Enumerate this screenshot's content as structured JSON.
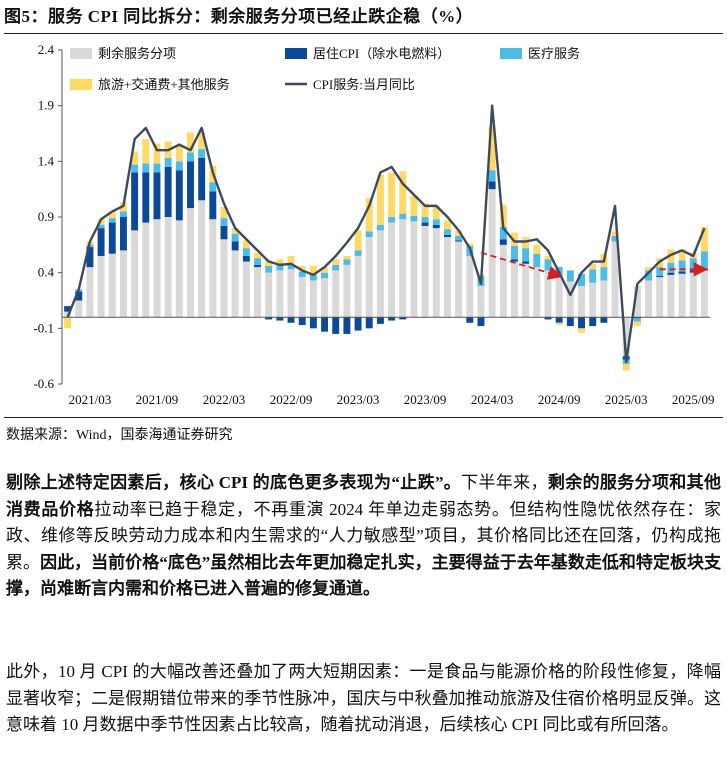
{
  "figure_title": "图5：服务 CPI 同比拆分：剩余服务分项已经止跌企稳（%）",
  "source": "数据来源：Wind，国泰海通证券研究",
  "colors": {
    "rest": "#d9d9d9",
    "housing": "#0b4a97",
    "medical": "#4dbbe6",
    "travel": "#ffd966",
    "line": "#3d4a5c",
    "arrow": "#d62020"
  },
  "chart_data": {
    "type": "bar",
    "stacked": true,
    "ylim": [
      -0.6,
      2.4
    ],
    "yticks": [
      "2.4",
      "1.9",
      "1.4",
      "0.9",
      "0.4",
      "-0.1",
      "-0.6"
    ],
    "xtick_labels": [
      "2021/03",
      "2021/09",
      "2022/03",
      "2022/09",
      "2023/03",
      "2023/09",
      "2024/03",
      "2024/09",
      "2025/03",
      "2025/09"
    ],
    "xtick_index": [
      2,
      8,
      14,
      20,
      26,
      32,
      38,
      44,
      50,
      56
    ],
    "grid": false,
    "legend": "top",
    "series": [
      {
        "name": "剩余服务分项",
        "key": "rest",
        "values": [
          0.05,
          0.15,
          0.45,
          0.55,
          0.57,
          0.6,
          0.78,
          0.85,
          0.88,
          0.9,
          0.87,
          0.98,
          1.05,
          0.88,
          0.7,
          0.6,
          0.5,
          0.45,
          0.4,
          0.42,
          0.43,
          0.36,
          0.33,
          0.35,
          0.42,
          0.47,
          0.55,
          0.72,
          0.78,
          0.85,
          0.88,
          0.86,
          0.82,
          0.8,
          0.72,
          0.68,
          0.55,
          0.28,
          1.15,
          0.65,
          0.5,
          0.48,
          0.45,
          0.42,
          0.36,
          0.32,
          0.28,
          0.31,
          0.33,
          0.68,
          -0.35,
          0.28,
          0.33,
          0.36,
          0.38,
          0.39,
          0.4,
          0.42
        ]
      },
      {
        "name": "居住CPI（除水电燃料）",
        "key": "housing",
        "values": [
          0.05,
          0.08,
          0.18,
          0.25,
          0.28,
          0.3,
          0.52,
          0.45,
          0.42,
          0.45,
          0.45,
          0.42,
          0.38,
          0.25,
          0.12,
          0.08,
          0.05,
          0.02,
          -0.02,
          -0.03,
          -0.05,
          -0.07,
          -0.1,
          -0.13,
          -0.15,
          -0.15,
          -0.12,
          -0.1,
          -0.06,
          -0.03,
          -0.02,
          0.0,
          0.03,
          0.03,
          0.02,
          0.01,
          -0.05,
          -0.08,
          0.07,
          0.05,
          0.02,
          0.02,
          0.0,
          -0.02,
          -0.05,
          -0.08,
          -0.1,
          -0.08,
          -0.05,
          0.0,
          -0.03,
          -0.01,
          0.0,
          0.01,
          0.02,
          0.02,
          0.02,
          0.02
        ]
      },
      {
        "name": "医疗服务",
        "key": "medical",
        "values": [
          0.0,
          0.02,
          0.02,
          0.03,
          0.04,
          0.05,
          0.07,
          0.08,
          0.08,
          0.08,
          0.08,
          0.08,
          0.08,
          0.08,
          0.07,
          0.07,
          0.07,
          0.06,
          0.06,
          0.05,
          0.05,
          0.05,
          0.05,
          0.05,
          0.05,
          0.05,
          0.05,
          0.05,
          0.05,
          0.05,
          0.05,
          0.05,
          0.05,
          0.05,
          0.05,
          0.04,
          0.09,
          0.09,
          0.1,
          0.11,
          0.12,
          0.12,
          0.12,
          0.1,
          0.09,
          0.1,
          0.11,
          0.12,
          0.12,
          0.05,
          -0.04,
          -0.03,
          0.09,
          0.08,
          0.09,
          0.1,
          0.11,
          0.15
        ]
      },
      {
        "name": "旅游+交通费+其他服务",
        "key": "travel",
        "values": [
          -0.1,
          0.0,
          0.03,
          0.05,
          0.06,
          0.08,
          0.12,
          0.22,
          0.18,
          0.15,
          0.15,
          0.18,
          0.15,
          0.15,
          0.1,
          0.05,
          0.07,
          0.05,
          0.05,
          0.05,
          0.07,
          0.05,
          0.08,
          0.05,
          0.05,
          0.03,
          0.18,
          0.3,
          0.45,
          0.4,
          0.38,
          0.18,
          0.12,
          0.12,
          0.08,
          0.05,
          0.02,
          0.02,
          0.4,
          0.2,
          0.12,
          0.1,
          0.08,
          0.03,
          -0.02,
          0.0,
          -0.04,
          0.05,
          0.12,
          0.04,
          -0.06,
          -0.04,
          0.03,
          0.08,
          0.12,
          0.1,
          0.05,
          0.22
        ]
      }
    ],
    "line": {
      "name": "CPI服务:当月同比",
      "key": "line",
      "values": [
        0.0,
        0.25,
        0.68,
        0.88,
        0.95,
        1.0,
        1.6,
        1.7,
        1.5,
        1.5,
        1.55,
        1.5,
        1.7,
        1.3,
        1.02,
        0.8,
        0.7,
        0.6,
        0.5,
        0.47,
        0.48,
        0.42,
        0.38,
        0.45,
        0.55,
        0.67,
        0.8,
        1.0,
        1.3,
        1.35,
        1.2,
        1.1,
        1.0,
        1.0,
        0.9,
        0.78,
        0.62,
        0.3,
        1.9,
        0.8,
        0.68,
        0.68,
        0.7,
        0.6,
        0.4,
        0.2,
        0.4,
        0.5,
        0.5,
        1.0,
        -0.4,
        0.3,
        0.4,
        0.5,
        0.56,
        0.6,
        0.55,
        0.8
      ]
    },
    "annotations": [
      {
        "type": "arrow",
        "from": [
          37,
          0.58
        ],
        "to": [
          44,
          0.37
        ]
      },
      {
        "type": "arrow",
        "from": [
          53,
          0.43
        ],
        "to": [
          57,
          0.43
        ]
      }
    ]
  },
  "paragraphs": [
    [
      {
        "text": "剔除上述特定因素后，核心 CPI 的底色更多表现为“止跌”。",
        "bold": true
      },
      {
        "text": "下半年来，",
        "bold": false
      },
      {
        "text": "剩余的服务分项和其他消费品价格",
        "bold": true
      },
      {
        "text": "拉动率已趋于稳定，不再重演 2024 年单边走弱态势。但结构性隐忧依然存在：家政、维修等反映劳动力成本和内生需求的“人力敏感型”项目，其价格同比还在回落，仍构成拖累。",
        "bold": false
      },
      {
        "text": "因此，当前价格“底色”虽然相比去年更加稳定扎实，主要得益于去年基数走低和特定板块支撑，尚难断言内需和价格已进入普遍的修复通道。",
        "bold": true
      }
    ],
    [
      {
        "text": "此外，10 月 CPI 的大幅改善还叠加了两大短期因素：一是食品与能源价格的阶段性修复，降幅显著收窄；二是假期错位带来的季节性脉冲，国庆与中秋叠加推动旅游及住宿价格明显反弹。这意味着 10 月数据中季节性因素占比较高，随着扰动消退，后续核心 CPI 同比或有所回落。",
        "bold": false
      }
    ]
  ]
}
